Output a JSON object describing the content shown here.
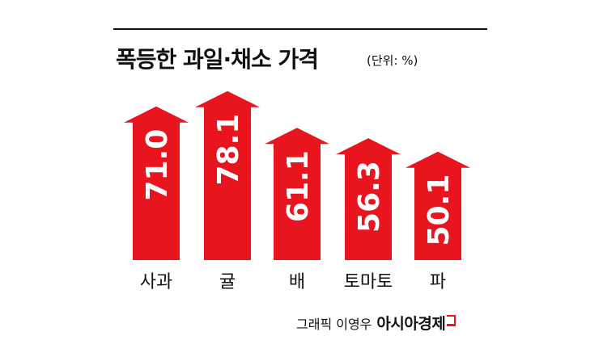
{
  "chart_data": {
    "type": "bar",
    "title": "폭등한 과일·채소 가격",
    "unit_label": "(단위: %)",
    "categories": [
      "사과",
      "귤",
      "배",
      "토마토",
      "파"
    ],
    "values": [
      71.0,
      78.1,
      61.1,
      56.3,
      50.1
    ],
    "value_labels": [
      "71.0",
      "78.1",
      "61.1",
      "56.3",
      "50.1"
    ],
    "ylim": [
      0,
      85
    ],
    "grid": false,
    "legend": "none",
    "bar_color": "#e8141e"
  },
  "credit": {
    "text": "그래픽 이영우",
    "brand": "아시아경제"
  }
}
